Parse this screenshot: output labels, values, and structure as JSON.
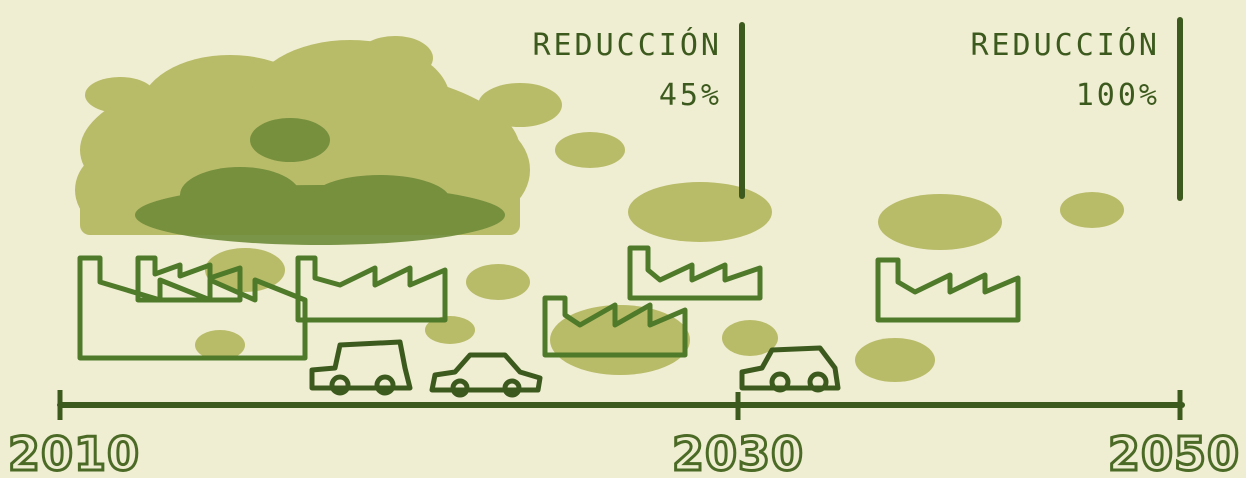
{
  "milestones": [
    {
      "title": "REDUCCIÓN",
      "value": "45%"
    },
    {
      "title": "REDUCCIÓN",
      "value": "100%"
    }
  ],
  "timeline": {
    "labels": [
      "2010",
      "2030",
      "2050"
    ]
  }
}
